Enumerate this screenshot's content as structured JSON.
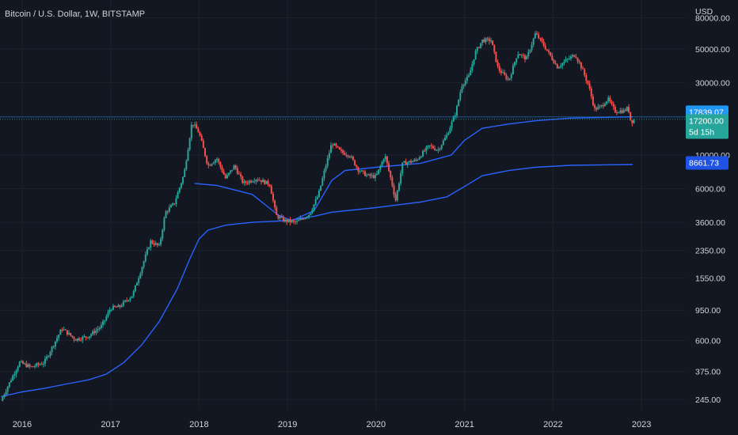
{
  "header": {
    "title": "Bitcoin / U.S. Dollar, 1W, BITSTAMP"
  },
  "axis": {
    "currency": "USD"
  },
  "colors": {
    "background": "#131722",
    "grid": "#1e222d",
    "up": "#26a69a",
    "down": "#ef5350",
    "ma": "#2962ff",
    "badge_blue": "#2196f3",
    "badge_green": "#26a69a",
    "badge_ma2": "#1e53e5"
  },
  "badges": {
    "ma1": "17839.07",
    "price": "17200.00",
    "countdown": "5d 15h",
    "ma2": "8661.73"
  },
  "chart_data": {
    "type": "candlestick",
    "title": "Bitcoin / U.S. Dollar, 1W, BITSTAMP",
    "ylabel": "USD",
    "y_scale": "log",
    "ylim": [
      210,
      105000
    ],
    "xlim": [
      2015.75,
      2023.5
    ],
    "x_ticks": [
      "2016",
      "2017",
      "2018",
      "2019",
      "2020",
      "2021",
      "2022",
      "2023"
    ],
    "y_ticks": [
      "245.00",
      "375.00",
      "600.00",
      "950.00",
      "1550.00",
      "2350.00",
      "3600.00",
      "6000.00",
      "10000.00",
      "30000.00",
      "50000.00",
      "80000.00"
    ],
    "price_anchors": [
      [
        2015.76,
        240
      ],
      [
        2015.85,
        310
      ],
      [
        2015.97,
        430
      ],
      [
        2016.1,
        400
      ],
      [
        2016.25,
        430
      ],
      [
        2016.45,
        720
      ],
      [
        2016.6,
        610
      ],
      [
        2016.75,
        640
      ],
      [
        2016.9,
        750
      ],
      [
        2017.0,
        980
      ],
      [
        2017.1,
        1000
      ],
      [
        2017.25,
        1200
      ],
      [
        2017.35,
        1800
      ],
      [
        2017.45,
        2700
      ],
      [
        2017.55,
        2500
      ],
      [
        2017.62,
        4200
      ],
      [
        2017.72,
        4800
      ],
      [
        2017.83,
        7500
      ],
      [
        2017.92,
        16500
      ],
      [
        2018.0,
        14000
      ],
      [
        2018.1,
        8500
      ],
      [
        2018.2,
        9500
      ],
      [
        2018.3,
        7000
      ],
      [
        2018.4,
        8500
      ],
      [
        2018.5,
        6500
      ],
      [
        2018.65,
        7000
      ],
      [
        2018.8,
        6400
      ],
      [
        2018.87,
        4000
      ],
      [
        2018.96,
        3700
      ],
      [
        2019.1,
        3600
      ],
      [
        2019.25,
        4100
      ],
      [
        2019.35,
        5500
      ],
      [
        2019.42,
        8000
      ],
      [
        2019.5,
        12000
      ],
      [
        2019.6,
        10500
      ],
      [
        2019.7,
        10000
      ],
      [
        2019.8,
        8000
      ],
      [
        2019.9,
        7300
      ],
      [
        2020.0,
        7200
      ],
      [
        2020.1,
        10000
      ],
      [
        2020.18,
        6500
      ],
      [
        2020.22,
        5000
      ],
      [
        2020.3,
        8800
      ],
      [
        2020.45,
        9200
      ],
      [
        2020.6,
        11500
      ],
      [
        2020.7,
        10800
      ],
      [
        2020.8,
        13500
      ],
      [
        2020.9,
        19000
      ],
      [
        2020.97,
        29000
      ],
      [
        2021.05,
        33000
      ],
      [
        2021.12,
        47000
      ],
      [
        2021.2,
        57000
      ],
      [
        2021.3,
        57000
      ],
      [
        2021.38,
        37000
      ],
      [
        2021.5,
        31000
      ],
      [
        2021.6,
        47000
      ],
      [
        2021.7,
        43000
      ],
      [
        2021.8,
        63000
      ],
      [
        2021.86,
        57000
      ],
      [
        2021.95,
        47000
      ],
      [
        2022.05,
        38000
      ],
      [
        2022.15,
        42000
      ],
      [
        2022.25,
        46000
      ],
      [
        2022.32,
        38000
      ],
      [
        2022.4,
        29000
      ],
      [
        2022.47,
        20000
      ],
      [
        2022.55,
        21000
      ],
      [
        2022.62,
        23500
      ],
      [
        2022.7,
        19500
      ],
      [
        2022.8,
        19500
      ],
      [
        2022.85,
        20500
      ],
      [
        2022.88,
        16500
      ],
      [
        2022.93,
        17200
      ]
    ],
    "series": [
      {
        "name": "",
        "type": "line",
        "points": [
          [
            2015.76,
            256
          ],
          [
            2016.0,
            275
          ],
          [
            2016.25,
            290
          ],
          [
            2016.5,
            310
          ],
          [
            2016.75,
            330
          ],
          [
            2016.95,
            360
          ],
          [
            2017.15,
            430
          ],
          [
            2017.35,
            560
          ],
          [
            2017.55,
            800
          ],
          [
            2017.75,
            1300
          ],
          [
            2017.9,
            2100
          ],
          [
            2018.0,
            2800
          ],
          [
            2018.1,
            3200
          ],
          [
            2018.3,
            3450
          ],
          [
            2018.6,
            3600
          ],
          [
            2019.0,
            3700
          ],
          [
            2019.3,
            3950
          ],
          [
            2019.5,
            4200
          ],
          [
            2020.0,
            4500
          ],
          [
            2020.5,
            4900
          ],
          [
            2020.8,
            5300
          ],
          [
            2021.0,
            6200
          ],
          [
            2021.2,
            7300
          ],
          [
            2021.5,
            7900
          ],
          [
            2021.8,
            8300
          ],
          [
            2022.2,
            8550
          ],
          [
            2022.9,
            8661.73
          ]
        ]
      },
      {
        "name": "",
        "type": "line",
        "points": [
          [
            2017.95,
            6500
          ],
          [
            2018.2,
            6300
          ],
          [
            2018.6,
            5500
          ],
          [
            2018.9,
            4000
          ],
          [
            2019.05,
            3700
          ],
          [
            2019.3,
            4300
          ],
          [
            2019.5,
            6800
          ],
          [
            2019.65,
            7900
          ],
          [
            2020.0,
            8300
          ],
          [
            2020.5,
            8800
          ],
          [
            2020.85,
            10000
          ],
          [
            2021.0,
            12500
          ],
          [
            2021.2,
            15000
          ],
          [
            2021.5,
            16000
          ],
          [
            2021.8,
            16800
          ],
          [
            2022.2,
            17500
          ],
          [
            2022.9,
            17839.07
          ]
        ]
      }
    ]
  }
}
